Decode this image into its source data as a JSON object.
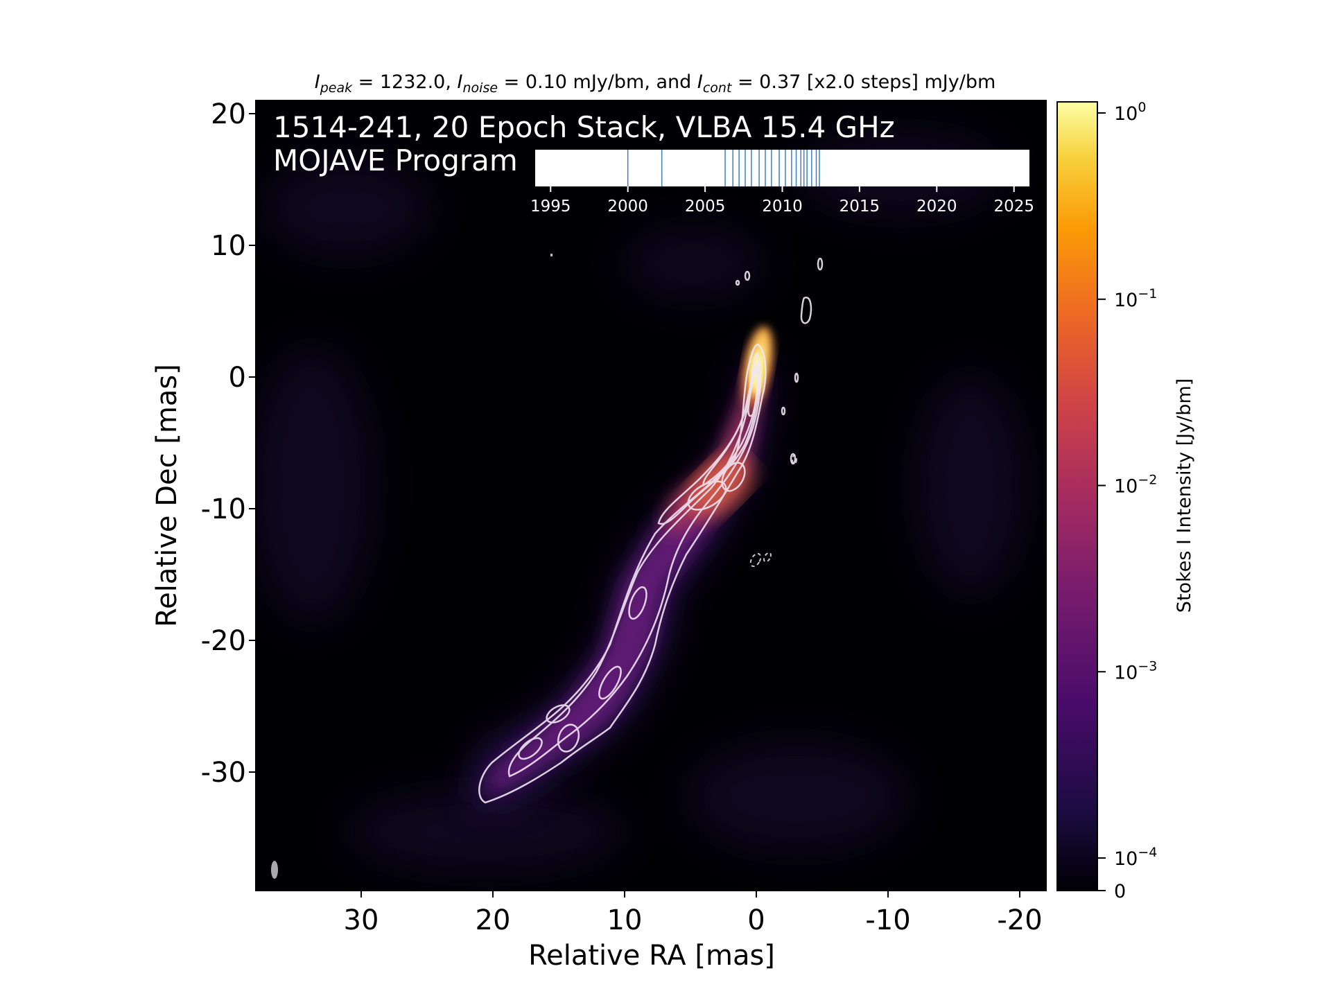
{
  "chart_data": {
    "type": "heatmap",
    "title": {
      "peak_sym": "I",
      "peak_sub": "peak",
      "peak_text": " = 1232.0, ",
      "noise_sym": "I",
      "noise_sub": "noise",
      "noise_text": " = 0.10 mJy/bm, and ",
      "cont_sym": "I",
      "cont_sub": "cont",
      "cont_text": " = 0.37 [x2.0 steps] mJy/bm"
    },
    "source_label": "1514-241, 20 Epoch Stack, VLBA 15.4 GHz",
    "program_label": "MOJAVE Program",
    "xlabel": "Relative RA [mas]",
    "ylabel": "Relative Dec [mas]",
    "xlim": [
      38,
      -22
    ],
    "ylim": [
      -39,
      21
    ],
    "xticks": [
      30,
      20,
      10,
      0,
      -10,
      -20
    ],
    "xtick_labels": [
      "30",
      "20",
      "10",
      "0",
      "-10",
      "-20"
    ],
    "yticks": [
      20,
      10,
      0,
      -10,
      -20,
      -30
    ],
    "ytick_labels": [
      "20",
      "10",
      "0",
      "-10",
      "-20",
      "-30"
    ],
    "colorbar": {
      "label": "Stokes I Intensity [Jy/bm]",
      "scale": "log",
      "ticks": [
        {
          "value": 1,
          "base": "10",
          "exp": "0"
        },
        {
          "value": 0.1,
          "base": "10",
          "exp": "−1"
        },
        {
          "value": 0.01,
          "base": "10",
          "exp": "−2"
        },
        {
          "value": 0.001,
          "base": "10",
          "exp": "−3"
        },
        {
          "value": 0.0001,
          "base": "10",
          "exp": "−4"
        },
        {
          "value": 0,
          "label": "0"
        }
      ],
      "colors": [
        "#000004",
        "#1b0c41",
        "#4a0c6b",
        "#781c6d",
        "#a52c60",
        "#cf4446",
        "#ed6925",
        "#fb9b06",
        "#f7d13d",
        "#fcffa4"
      ]
    },
    "epoch_timeline": {
      "xlim": [
        1994,
        2026
      ],
      "ticks": [
        1995,
        2000,
        2005,
        2010,
        2015,
        2020,
        2025
      ],
      "tick_labels": [
        "1995",
        "2000",
        "2005",
        "2010",
        "2015",
        "2020",
        "2025"
      ],
      "epochs": [
        2000.0,
        2002.2,
        2006.3,
        2006.8,
        2007.2,
        2007.6,
        2008.0,
        2008.5,
        2008.9,
        2009.3,
        2009.8,
        2010.2,
        2010.6,
        2010.9,
        2011.2,
        2011.4,
        2011.6,
        2011.9,
        2012.2,
        2012.4
      ],
      "line_color": "#3b7fc4"
    },
    "jet_ridge_mas": [
      [
        0,
        1.5
      ],
      [
        0,
        -1
      ],
      [
        0.5,
        -3
      ],
      [
        1.2,
        -5
      ],
      [
        2,
        -7
      ],
      [
        3.8,
        -8.8
      ],
      [
        6,
        -10.5
      ],
      [
        8,
        -12.5
      ],
      [
        9.5,
        -15
      ],
      [
        10.5,
        -18.5
      ],
      [
        11.5,
        -21.5
      ],
      [
        13,
        -24
      ],
      [
        14.5,
        -26.2
      ],
      [
        16,
        -28
      ],
      [
        18,
        -30
      ],
      [
        20.5,
        -32
      ]
    ]
  }
}
